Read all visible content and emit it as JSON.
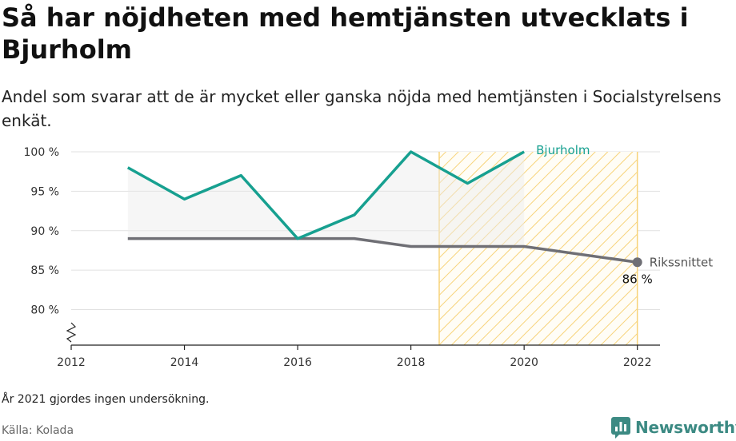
{
  "title": "Så har nöjdheten med hemtjänsten utvecklats i Bjurholm",
  "subtitle": "Andel som svarar att de är mycket eller ganska nöjda med hemtjänsten i Socialstyrelsens enkät.",
  "note": "År 2021 gjordes ingen undersökning.",
  "source": "Källa: Kolada",
  "brand": {
    "name": "Newsworthy",
    "icon": "newsworthy-logo-icon",
    "color": "#3c8a83"
  },
  "chart_data": {
    "type": "line",
    "xlim": [
      2012,
      2022.4
    ],
    "ylim": [
      75.5,
      100
    ],
    "y_axis_break": true,
    "x_ticks": [
      2012,
      2014,
      2016,
      2018,
      2020,
      2022
    ],
    "y_ticks": [
      80,
      85,
      90,
      95,
      100
    ],
    "y_tick_suffix": " %",
    "grid": true,
    "highlight_range": [
      2018.5,
      2022
    ],
    "series": [
      {
        "name": "Bjurholm",
        "color": "#17a090",
        "x": [
          2013,
          2014,
          2015,
          2016,
          2017,
          2018,
          2019,
          2020
        ],
        "y": [
          98,
          94,
          97,
          89,
          92,
          100,
          96,
          100
        ]
      },
      {
        "name": "Rikssnittet",
        "color": "#6f6f75",
        "x": [
          2013,
          2014,
          2015,
          2016,
          2017,
          2018,
          2019,
          2020,
          2022
        ],
        "y": [
          89,
          89,
          89,
          89,
          89,
          88,
          88,
          88,
          86
        ]
      }
    ],
    "last_value_label": "86 %"
  }
}
